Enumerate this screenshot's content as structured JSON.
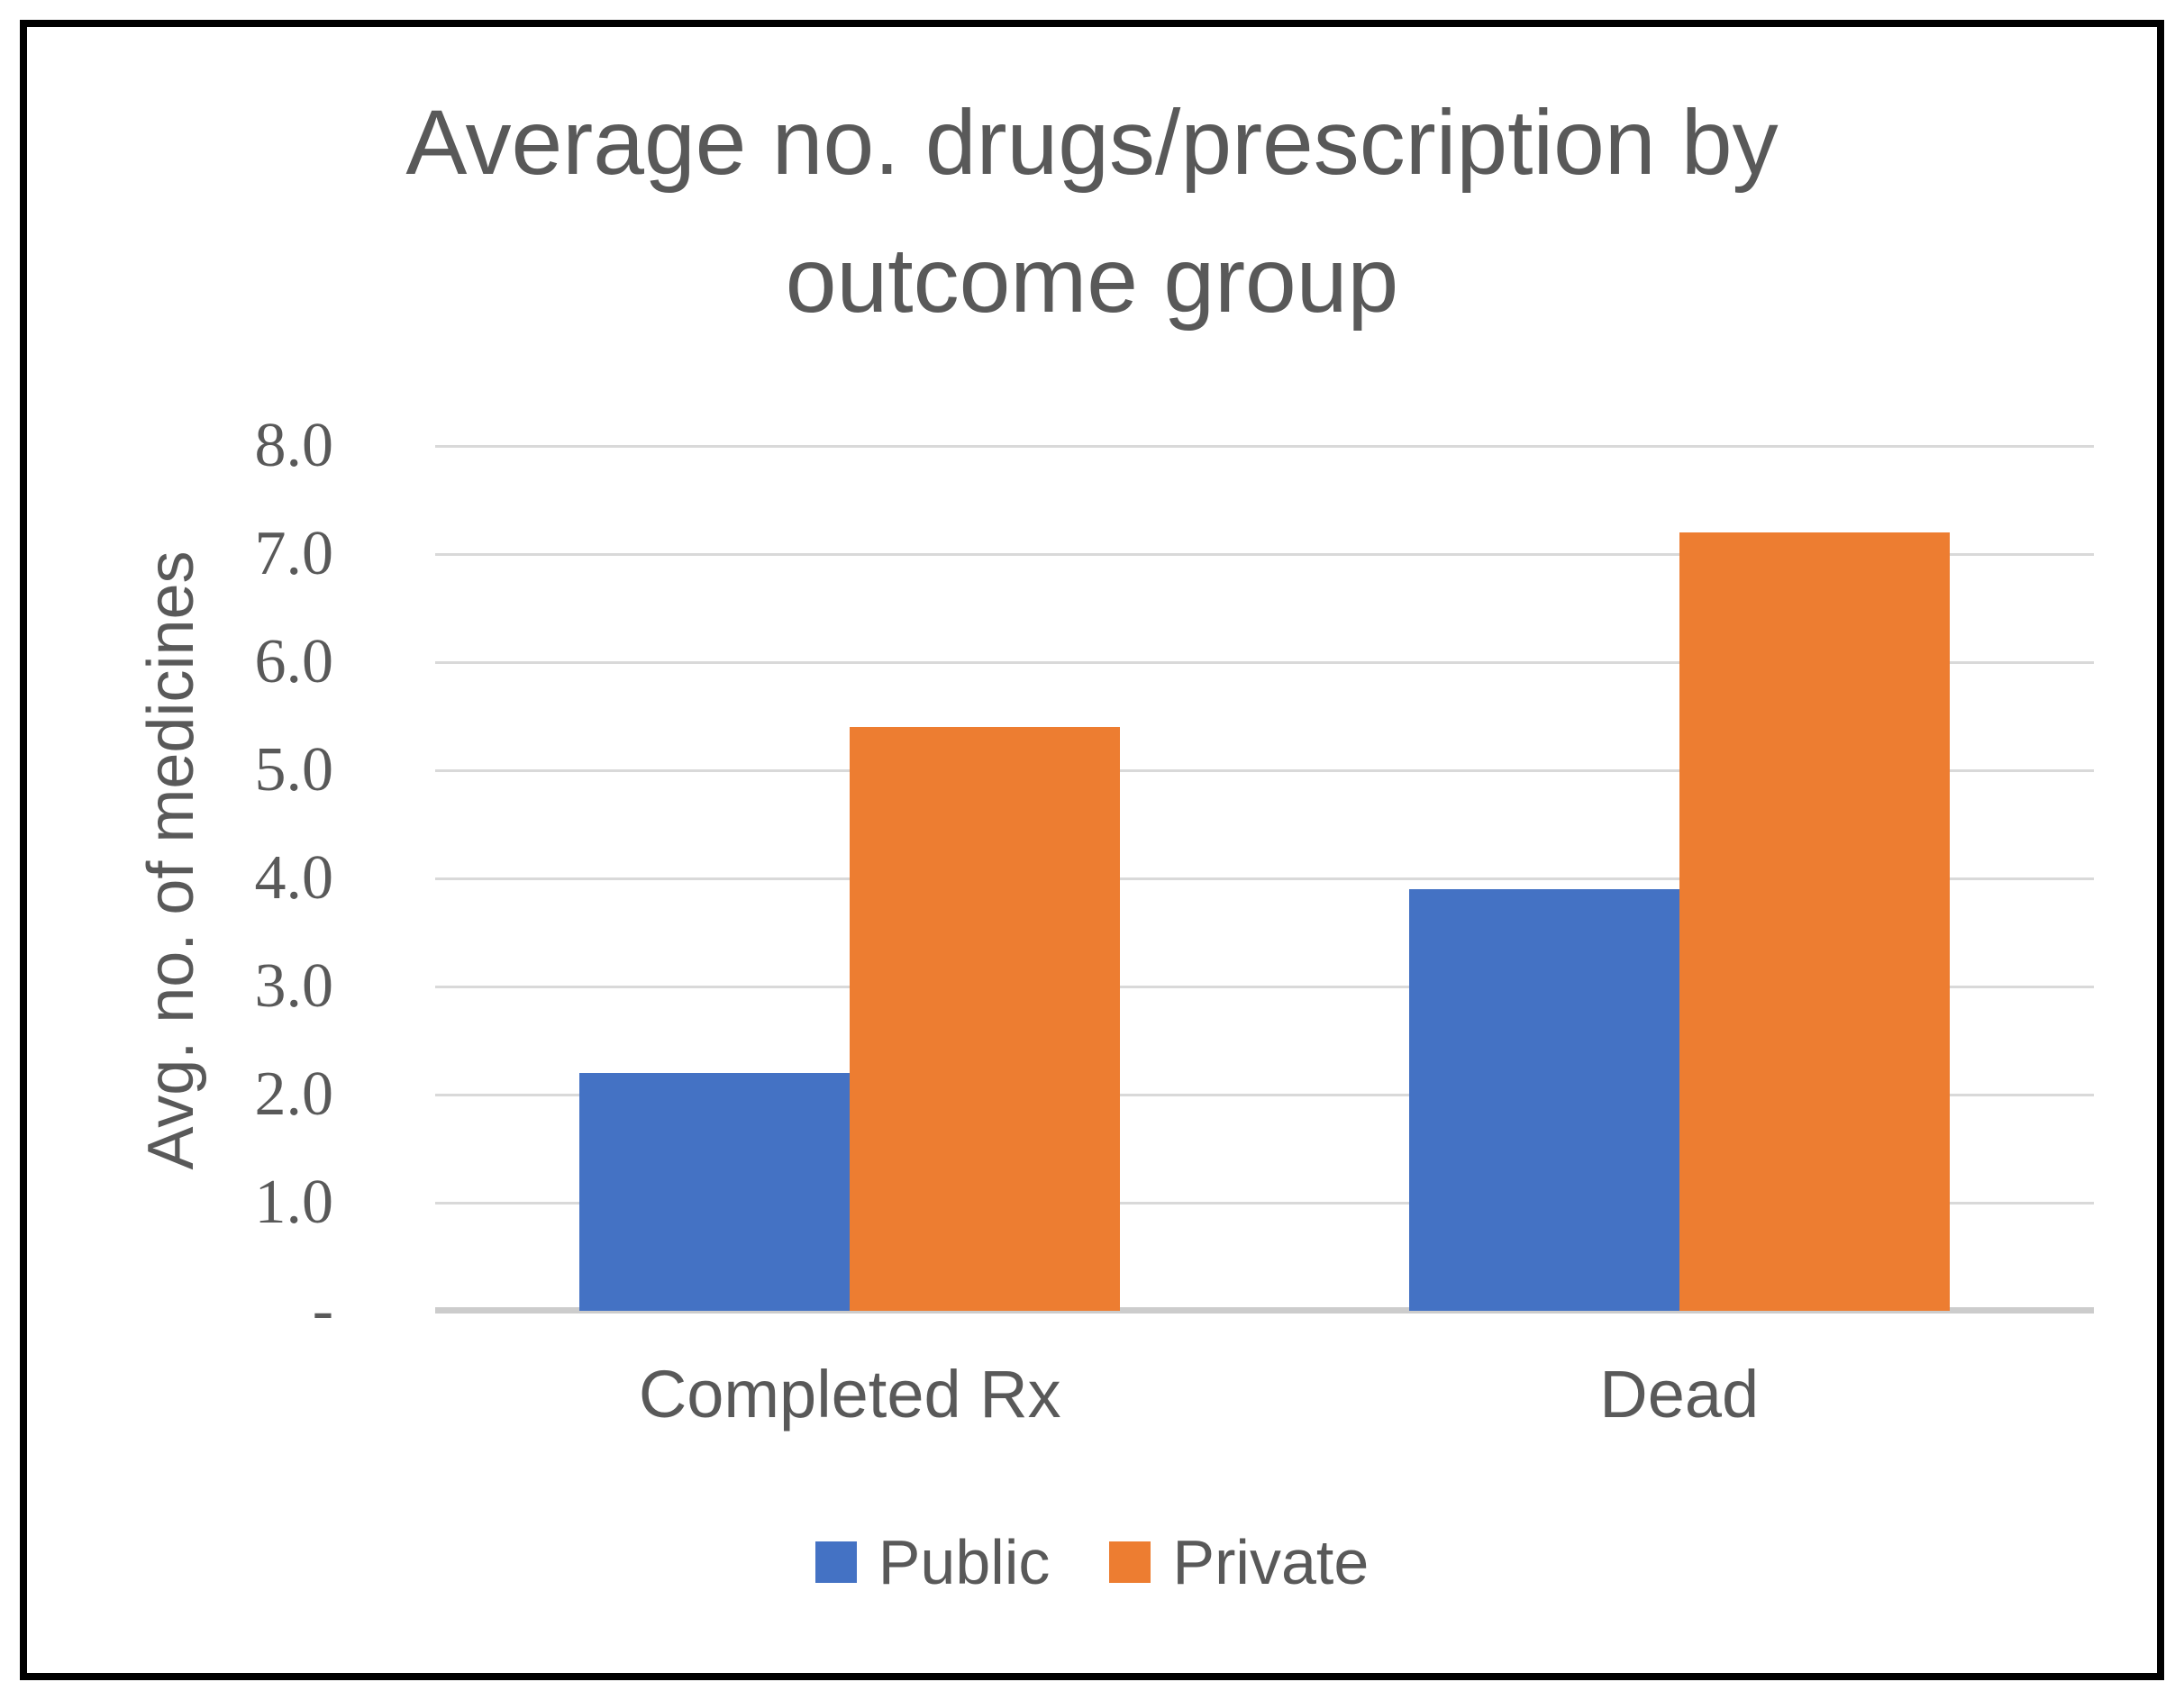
{
  "frame": {
    "border_color": "#000000",
    "background_color": "#ffffff"
  },
  "chart_data": {
    "type": "bar",
    "title": "Average no. drugs/prescription by outcome group",
    "title_lines": [
      "Average no. drugs/prescription by",
      "outcome group"
    ],
    "categories": [
      "Completed Rx",
      "Dead"
    ],
    "series": [
      {
        "name": "Public",
        "color": "#4472c4",
        "values": [
          2.2,
          3.9
        ]
      },
      {
        "name": "Private",
        "color": "#ed7d31",
        "values": [
          5.4,
          7.2
        ]
      }
    ],
    "xlabel": "",
    "ylabel": "Avg. no. of medicines",
    "ylim": [
      0,
      8
    ],
    "ytick_step": 1.0,
    "ytick_labels": [
      "-",
      "1.0",
      "2.0",
      "3.0",
      "4.0",
      "5.0",
      "6.0",
      "7.0",
      "8.0"
    ],
    "grid": "horizontal",
    "gridline_color": "#d9d9d9",
    "axis_line_color": "#cccccc",
    "text_color": "#595959",
    "legend_position": "bottom",
    "legend_labels": [
      "Public",
      "Private"
    ]
  }
}
